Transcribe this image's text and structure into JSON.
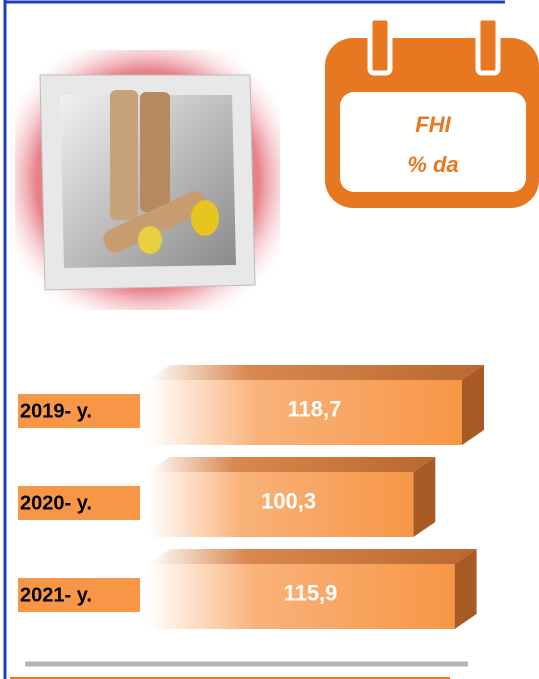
{
  "chart_data": {
    "type": "bar",
    "title": "FHI",
    "subtitle": "% da",
    "categories": [
      "2019- y.",
      "2020- y.",
      "2021- y."
    ],
    "values": [
      118.7,
      100.3,
      115.9
    ],
    "value_labels": [
      "118,7",
      "100,3",
      "115,9"
    ],
    "color": "#f79646"
  }
}
